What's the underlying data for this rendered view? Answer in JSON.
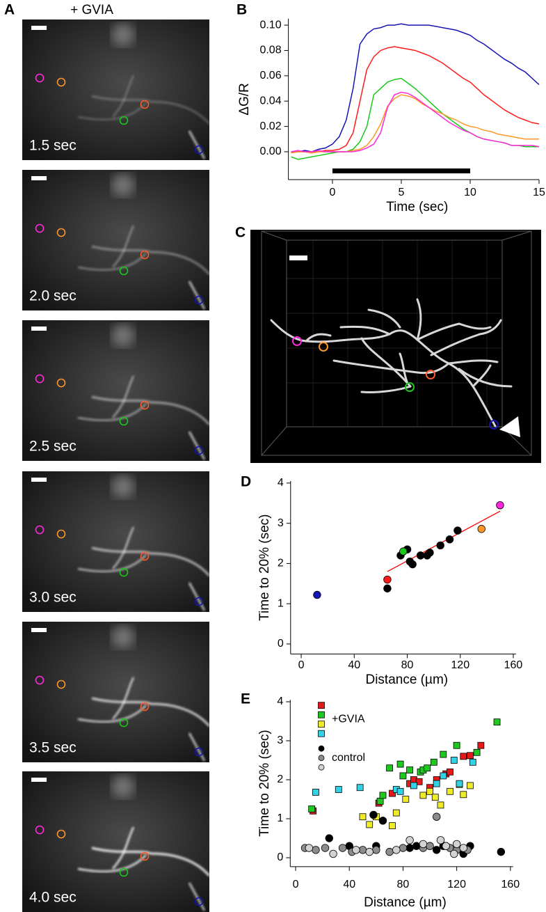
{
  "panel_labels": [
    "A",
    "B",
    "C",
    "D",
    "E"
  ],
  "panel_a": {
    "title": "+ GVIA",
    "frames": [
      "1.5 sec",
      "2.0 sec",
      "2.5 sec",
      "3.0 sec",
      "3.5 sec",
      "4.0 sec"
    ]
  },
  "chart_data": [
    {
      "type": "line",
      "xlabel": "Time (sec)",
      "ylabel": "ΔG/R",
      "x": [
        -3,
        -2.5,
        -2,
        -1.5,
        -1,
        -0.5,
        0,
        0.5,
        1,
        1.5,
        2,
        2.5,
        3,
        3.5,
        4,
        4.5,
        5,
        5.5,
        6,
        6.5,
        7,
        7.5,
        8,
        8.5,
        9,
        9.5,
        10,
        10.5,
        11,
        11.5,
        12,
        12.5,
        13,
        13.5,
        14,
        14.5,
        15
      ],
      "series": [
        {
          "color": "#1414b4",
          "values": [
            0,
            0,
            0.001,
            0,
            0.002,
            0.003,
            0.006,
            0.012,
            0.025,
            0.05,
            0.085,
            0.093,
            0.097,
            0.098,
            0.1,
            0.1,
            0.101,
            0.1,
            0.1,
            0.1,
            0.1,
            0.099,
            0.098,
            0.097,
            0.096,
            0.094,
            0.092,
            0.088,
            0.085,
            0.081,
            0.077,
            0.073,
            0.07,
            0.066,
            0.063,
            0.058,
            0.053
          ]
        },
        {
          "color": "#ff1a1a",
          "values": [
            0,
            0,
            0,
            0,
            0,
            0.001,
            0.001,
            0.002,
            0.005,
            0.015,
            0.04,
            0.065,
            0.075,
            0.08,
            0.082,
            0.083,
            0.082,
            0.081,
            0.08,
            0.078,
            0.076,
            0.073,
            0.07,
            0.066,
            0.062,
            0.058,
            0.055,
            0.05,
            0.045,
            0.041,
            0.037,
            0.033,
            0.03,
            0.027,
            0.025,
            0.023,
            0.022
          ]
        },
        {
          "color": "#19c819",
          "values": [
            -0.004,
            -0.006,
            -0.005,
            -0.004,
            -0.003,
            -0.002,
            -0.001,
            0,
            0,
            0.002,
            0.008,
            0.02,
            0.045,
            0.05,
            0.055,
            0.057,
            0.058,
            0.054,
            0.05,
            0.045,
            0.04,
            0.035,
            0.03,
            0.026,
            0.022,
            0.018,
            0.015,
            0.012,
            0.01,
            0.009,
            0.008,
            0.007,
            0.005,
            0.005,
            0.004,
            0.004,
            0.004
          ]
        },
        {
          "color": "#ff9628",
          "values": [
            -0.001,
            0,
            0,
            -0.001,
            0,
            0,
            0,
            0,
            0,
            0.001,
            0.002,
            0.005,
            0.012,
            0.022,
            0.036,
            0.042,
            0.045,
            0.044,
            0.042,
            0.038,
            0.035,
            0.032,
            0.03,
            0.027,
            0.025,
            0.022,
            0.02,
            0.019,
            0.017,
            0.016,
            0.014,
            0.013,
            0.012,
            0.011,
            0.01,
            0.01,
            0.01
          ]
        },
        {
          "color": "#ff28dc",
          "values": [
            0,
            0.001,
            0,
            0,
            0.001,
            0,
            0,
            0,
            0,
            0,
            0.001,
            0.003,
            0.006,
            0.015,
            0.035,
            0.045,
            0.047,
            0.046,
            0.043,
            0.039,
            0.035,
            0.031,
            0.027,
            0.023,
            0.02,
            0.017,
            0.015,
            0.012,
            0.01,
            0.009,
            0.008,
            0.007,
            0.005,
            0.005,
            0.005,
            0.005,
            0.004
          ]
        }
      ],
      "stimulus_bar": {
        "start": 0,
        "end": 10,
        "color": "#000000"
      },
      "xlim": [
        -3.2,
        15
      ],
      "ylim": [
        -0.022,
        0.105
      ],
      "xticks": [
        0,
        5,
        10,
        15
      ],
      "yticks": [
        {
          "value": 0,
          "label": "0.00"
        },
        {
          "value": 0.02,
          "label": "0.02"
        },
        {
          "value": 0.04,
          "label": "0.04"
        },
        {
          "value": 0.06,
          "label": "0.06"
        },
        {
          "value": 0.08,
          "label": "0.08"
        },
        {
          "value": 0.1,
          "label": "0.10"
        }
      ]
    },
    {
      "type": "scatter",
      "xlabel": "Distance (µm)",
      "ylabel": "Time to 20% (sec)",
      "marker": "circle",
      "series": [
        {
          "color": "#000000",
          "x": [
            65,
            75,
            80,
            82,
            84,
            90,
            95,
            97,
            105,
            112,
            118
          ],
          "values": [
            1.38,
            2.2,
            2.35,
            2.05,
            1.98,
            2.2,
            2.2,
            2.27,
            2.45,
            2.6,
            2.82
          ]
        },
        {
          "color": "#ff1a1a",
          "x": [
            65
          ],
          "values": [
            1.6
          ]
        },
        {
          "color": "#19c819",
          "x": [
            77
          ],
          "values": [
            2.3
          ]
        },
        {
          "color": "#1414b4",
          "x": [
            12
          ],
          "values": [
            1.22
          ]
        },
        {
          "color": "#ff9628",
          "x": [
            136
          ],
          "values": [
            2.86
          ]
        },
        {
          "color": "#ff28dc",
          "x": [
            150
          ],
          "values": [
            3.45
          ]
        }
      ],
      "fit": {
        "color": "#ff0000",
        "x": [
          65,
          150
        ],
        "values": [
          1.8,
          3.3
        ]
      },
      "xlim": [
        -8,
        162
      ],
      "ylim": [
        -0.25,
        4.05
      ],
      "xticks": [
        0,
        40,
        80,
        120,
        160
      ],
      "yticks": [
        0,
        1,
        2,
        3,
        4
      ]
    },
    {
      "type": "scatter",
      "xlabel": "Distance (µm)",
      "ylabel": "Time to 20% (sec)",
      "groups": [
        {
          "name": "+GVIA",
          "marker": "square",
          "series": [
            {
              "color": "#e61919",
              "x": [
                13,
                62,
                72,
                85,
                88,
                92,
                100,
                105,
                112,
                115,
                125,
                130,
                138
              ],
              "values": [
                1.2,
                1.4,
                1.65,
                1.9,
                2.0,
                1.95,
                1.8,
                2.0,
                2.15,
                2.2,
                2.6,
                2.62,
                2.88
              ]
            },
            {
              "color": "#1ec81e",
              "x": [
                12,
                63,
                65,
                70,
                78,
                80,
                85,
                93,
                95,
                98,
                103,
                110,
                120,
                135,
                150
              ],
              "values": [
                1.25,
                1.45,
                1.6,
                2.3,
                2.4,
                2.1,
                2.25,
                2.2,
                2.25,
                2.3,
                2.45,
                2.65,
                2.88,
                2.7,
                3.48
              ]
            },
            {
              "color": "#f0eb28",
              "x": [
                50,
                55,
                60,
                72,
                75,
                82,
                95,
                100,
                104,
                108,
                115,
                122,
                125,
                130
              ],
              "values": [
                1.05,
                0.85,
                1.05,
                0.82,
                1.15,
                1.5,
                1.6,
                1.7,
                1.55,
                1.35,
                1.7,
                1.88,
                1.62,
                1.85
              ]
            },
            {
              "color": "#32d2e6",
              "x": [
                15,
                32,
                48,
                75,
                78,
                88,
                105,
                110,
                118,
                122,
                132
              ],
              "values": [
                1.68,
                1.75,
                1.8,
                1.75,
                1.7,
                1.85,
                1.9,
                2.1,
                2.5,
                1.9,
                2.45
              ]
            }
          ]
        },
        {
          "name": "control",
          "marker": "circle",
          "series": [
            {
              "color": "#000000",
              "x": [
                25,
                40,
                58,
                60,
                65,
                85,
                90,
                105,
                110,
                125,
                130,
                153
              ],
              "values": [
                0.5,
                0.3,
                1.1,
                0.3,
                0.95,
                0.25,
                0.3,
                0.2,
                0.3,
                0.1,
                0.3,
                0.15
              ]
            },
            {
              "color": "#8c8c8c",
              "x": [
                7,
                15,
                22,
                35,
                42,
                50,
                60,
                70,
                80,
                95,
                100,
                105,
                115,
                120,
                128
              ],
              "values": [
                0.25,
                0.2,
                0.25,
                0.25,
                0.15,
                0.2,
                0.2,
                0.15,
                0.25,
                0.25,
                0.3,
                1.05,
                0.25,
                0.2,
                0.2
              ]
            },
            {
              "color": "#d2d2d2",
              "x": [
                10,
                28,
                45,
                55,
                75,
                85,
                95,
                108,
                112,
                118,
                120,
                125
              ],
              "values": [
                0.25,
                0.1,
                0.2,
                0.15,
                0.2,
                0.45,
                0.35,
                0.45,
                0.3,
                0.1,
                0.35,
                0.25
              ]
            }
          ]
        }
      ],
      "xlim": [
        -4,
        162
      ],
      "ylim": [
        -0.23,
        4.05
      ],
      "xticks": [
        0,
        40,
        80,
        120,
        160
      ],
      "yticks": [
        0,
        1,
        2,
        3,
        4
      ]
    }
  ]
}
